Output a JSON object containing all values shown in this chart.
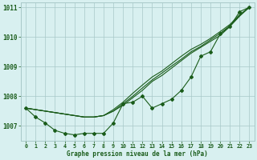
{
  "bg_color": "#d8f0f0",
  "grid_color": "#a8c8c8",
  "line_color": "#1a5c1a",
  "x": [
    0,
    1,
    2,
    3,
    4,
    5,
    6,
    7,
    8,
    9,
    10,
    11,
    12,
    13,
    14,
    15,
    16,
    17,
    18,
    19,
    20,
    21,
    22,
    23
  ],
  "line_straight1": [
    1007.6,
    1007.55,
    1007.5,
    1007.45,
    1007.4,
    1007.35,
    1007.3,
    1007.3,
    1007.35,
    1007.5,
    1007.7,
    1007.95,
    1008.2,
    1008.5,
    1008.7,
    1008.95,
    1009.2,
    1009.45,
    1009.65,
    1009.85,
    1010.05,
    1010.35,
    1010.7,
    1011.0
  ],
  "line_straight2": [
    1007.6,
    1007.55,
    1007.5,
    1007.45,
    1007.4,
    1007.35,
    1007.3,
    1007.3,
    1007.35,
    1007.5,
    1007.75,
    1008.0,
    1008.28,
    1008.55,
    1008.78,
    1009.02,
    1009.25,
    1009.5,
    1009.68,
    1009.9,
    1010.12,
    1010.38,
    1010.72,
    1011.0
  ],
  "line_straight3": [
    1007.6,
    1007.55,
    1007.5,
    1007.45,
    1007.4,
    1007.35,
    1007.3,
    1007.3,
    1007.35,
    1007.55,
    1007.8,
    1008.1,
    1008.38,
    1008.65,
    1008.85,
    1009.1,
    1009.35,
    1009.58,
    1009.75,
    1009.95,
    1010.18,
    1010.42,
    1010.75,
    1011.0
  ],
  "line_marker": [
    1007.6,
    1007.3,
    1007.1,
    1006.85,
    1006.75,
    1006.7,
    1006.75,
    1006.75,
    1006.75,
    1007.1,
    1007.75,
    1007.8,
    1008.0,
    1007.6,
    1007.75,
    1007.9,
    1008.2,
    1008.65,
    1009.35,
    1009.5,
    1010.1,
    1010.35,
    1010.85,
    1011.0
  ],
  "ylim": [
    1006.5,
    1011.15
  ],
  "yticks": [
    1007,
    1008,
    1009,
    1010,
    1011
  ],
  "xticks": [
    0,
    1,
    2,
    3,
    4,
    5,
    6,
    7,
    8,
    9,
    10,
    11,
    12,
    13,
    14,
    15,
    16,
    17,
    18,
    19,
    20,
    21,
    22,
    23
  ],
  "xlabel": "Graphe pression niveau de la mer (hPa)"
}
